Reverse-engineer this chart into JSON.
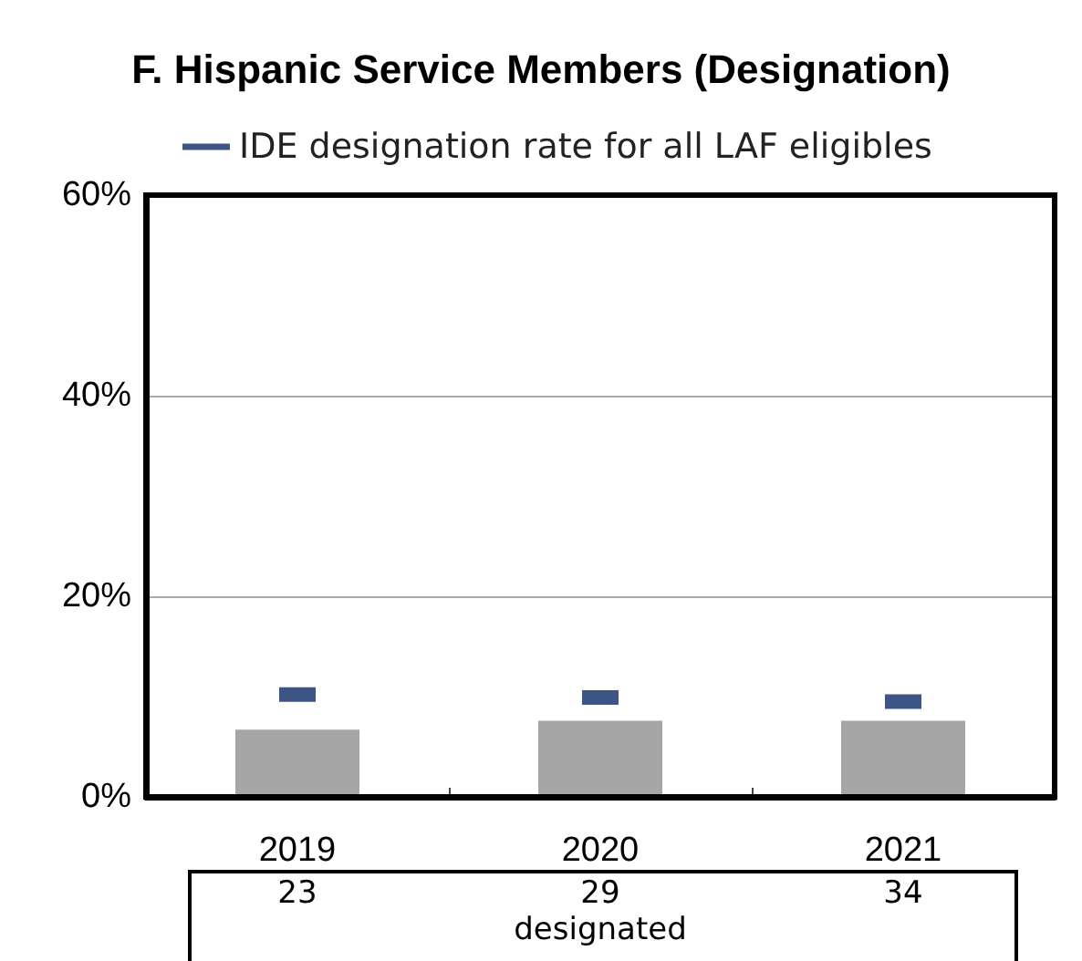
{
  "chart_data": {
    "type": "bar",
    "title": "F. Hispanic Service Members (Designation)",
    "categories": [
      "2019",
      "2020",
      "2021"
    ],
    "series": [
      {
        "color": "#a6a6a6",
        "values": [
          6.7,
          7.6,
          7.6
        ]
      },
      {
        "type": "scatter",
        "name": "IDE designation rate for all LAF eligibles",
        "color": "#0b2a66",
        "values": [
          10.2,
          9.9,
          9.5
        ]
      }
    ],
    "ylim": [
      0,
      60
    ],
    "yticks": [
      {
        "value": 0,
        "label": "0%"
      },
      {
        "value": 20,
        "label": "20%"
      },
      {
        "value": 40,
        "label": "40%"
      },
      {
        "value": 60,
        "label": "60%"
      }
    ],
    "grid": "y",
    "legend": "top left",
    "annotations": [
      "23",
      "29",
      "34",
      "designated"
    ]
  }
}
